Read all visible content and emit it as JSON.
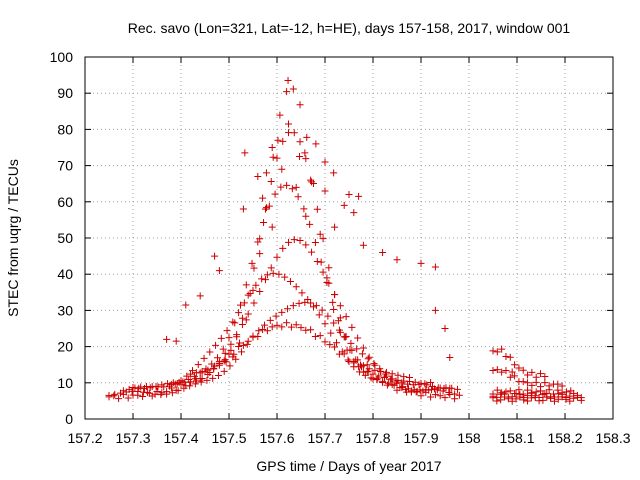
{
  "chart_data": {
    "type": "scatter",
    "title": "Rec. savo (Lon=321, Lat=-12, h=HE), days 157-158, 2017, window 001",
    "xlabel": "GPS time / Days of year 2017",
    "ylabel": "STEC from uqrg / TECUs",
    "xlim": [
      157.2,
      158.3
    ],
    "ylim": [
      0,
      100
    ],
    "xticks": [
      "157.2",
      "157.3",
      "157.4",
      "157.5",
      "157.6",
      "157.7",
      "157.8",
      "157.9",
      "158",
      "158.1",
      "158.2",
      "158.3"
    ],
    "yticks": [
      "0",
      "10",
      "20",
      "30",
      "40",
      "50",
      "60",
      "70",
      "80",
      "90",
      "100"
    ],
    "grid": true,
    "marker": "+",
    "color": "#cc0000",
    "tracks": [
      {
        "start": 157.25,
        "end": 157.98,
        "step": 0.01,
        "base": 6,
        "peak": 20,
        "center": 157.62,
        "width": 0.16
      },
      {
        "start": 157.25,
        "end": 157.98,
        "step": 0.012,
        "base": 7,
        "peak": 25,
        "center": 157.65,
        "width": 0.14
      },
      {
        "start": 157.28,
        "end": 157.98,
        "step": 0.012,
        "base": 8,
        "peak": 32,
        "center": 157.6,
        "width": 0.13
      },
      {
        "start": 157.3,
        "end": 157.96,
        "step": 0.012,
        "base": 9,
        "peak": 40,
        "center": 157.64,
        "width": 0.12
      },
      {
        "start": 157.38,
        "end": 157.92,
        "step": 0.012,
        "base": 10,
        "peak": 55,
        "center": 157.62,
        "width": 0.1
      },
      {
        "start": 157.42,
        "end": 157.88,
        "step": 0.012,
        "base": 12,
        "peak": 68,
        "center": 157.63,
        "width": 0.085
      },
      {
        "start": 157.48,
        "end": 157.8,
        "step": 0.014,
        "base": 14,
        "peak": 78,
        "center": 157.63,
        "width": 0.07
      },
      {
        "start": 158.05,
        "end": 158.24,
        "step": 0.008,
        "base": 5.5,
        "peak": 0,
        "center": 158.1,
        "width": 0.1
      },
      {
        "start": 158.05,
        "end": 158.24,
        "step": 0.008,
        "base": 6.5,
        "peak": 0,
        "center": 158.1,
        "width": 0.1
      },
      {
        "start": 158.05,
        "end": 158.22,
        "step": 0.009,
        "base": 7.5,
        "peak": 0,
        "center": 158.1,
        "width": 0.1
      },
      {
        "start": 158.05,
        "end": 158.2,
        "step": 0.009,
        "base": 9.5,
        "peak": 4,
        "center": 158.06,
        "width": 0.04
      },
      {
        "start": 158.05,
        "end": 158.16,
        "step": 0.009,
        "base": 12,
        "peak": 7,
        "center": 158.06,
        "width": 0.04
      }
    ],
    "extra_points": [
      [
        157.623,
        93.5
      ],
      [
        157.624,
        81.5
      ],
      [
        157.681,
        76
      ],
      [
        157.533,
        73.5
      ],
      [
        157.658,
        73.5
      ],
      [
        157.647,
        72.5
      ],
      [
        157.59,
        75
      ],
      [
        157.602,
        77
      ],
      [
        157.7,
        71
      ],
      [
        157.718,
        68
      ],
      [
        157.578,
        68
      ],
      [
        157.56,
        67
      ],
      [
        157.61,
        69
      ],
      [
        157.64,
        64
      ],
      [
        157.67,
        66
      ],
      [
        157.7,
        63
      ],
      [
        157.75,
        62
      ],
      [
        157.77,
        61.5
      ],
      [
        157.74,
        59
      ],
      [
        157.76,
        57
      ],
      [
        157.57,
        61
      ],
      [
        157.53,
        58
      ],
      [
        157.59,
        53
      ],
      [
        157.66,
        56
      ],
      [
        157.72,
        53
      ],
      [
        157.78,
        48
      ],
      [
        157.82,
        46
      ],
      [
        157.85,
        44
      ],
      [
        157.9,
        43
      ],
      [
        157.93,
        42
      ],
      [
        157.47,
        45
      ],
      [
        157.48,
        41
      ],
      [
        157.41,
        31.5
      ],
      [
        157.44,
        34
      ],
      [
        157.37,
        22
      ],
      [
        157.39,
        21.5
      ],
      [
        157.93,
        30
      ],
      [
        157.95,
        25
      ],
      [
        157.96,
        17
      ],
      [
        158.09,
        13
      ]
    ]
  }
}
